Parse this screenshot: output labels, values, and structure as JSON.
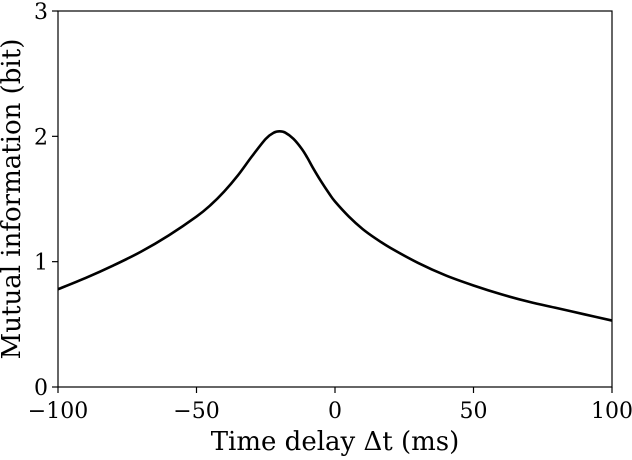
{
  "chart_data": {
    "type": "line",
    "title": "",
    "xlabel": "Time delay Δt (ms)",
    "ylabel": "Mutual information (bit)",
    "xlim": [
      -100,
      100
    ],
    "ylim": [
      0,
      3
    ],
    "xticks": [
      -100,
      -50,
      0,
      50,
      100
    ],
    "xtick_labels": [
      "−100",
      "−50",
      "0",
      "50",
      "100"
    ],
    "yticks": [
      0,
      1,
      2,
      3
    ],
    "ytick_labels": [
      "0",
      "1",
      "2",
      "3"
    ],
    "grid": false,
    "legend": "none",
    "line_color": "#000000",
    "series": [
      {
        "x": [
          -100,
          -90,
          -80,
          -70,
          -60,
          -50,
          -45,
          -40,
          -35,
          -30,
          -25,
          -22,
          -20,
          -18,
          -15,
          -12,
          -10,
          -8,
          -5,
          -2,
          0,
          5,
          10,
          15,
          20,
          30,
          40,
          50,
          60,
          70,
          80,
          90,
          100
        ],
        "y": [
          0.78,
          0.87,
          0.97,
          1.08,
          1.21,
          1.36,
          1.45,
          1.56,
          1.69,
          1.84,
          1.98,
          2.03,
          2.04,
          2.03,
          1.98,
          1.9,
          1.83,
          1.75,
          1.64,
          1.54,
          1.48,
          1.36,
          1.26,
          1.18,
          1.11,
          0.99,
          0.89,
          0.81,
          0.74,
          0.68,
          0.63,
          0.58,
          0.53
        ]
      }
    ]
  }
}
